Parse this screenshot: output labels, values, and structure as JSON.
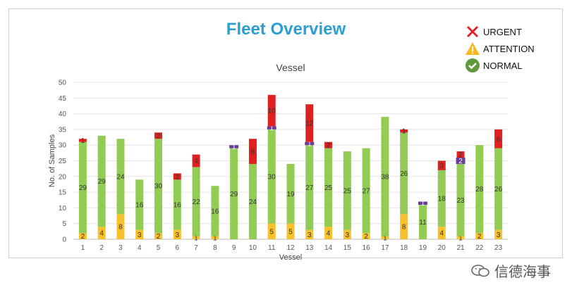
{
  "header": {
    "title": "Fleet Overview"
  },
  "legend": [
    {
      "label": "URGENT",
      "icon": "x-icon",
      "color": "#e02020"
    },
    {
      "label": "ATTENTION",
      "icon": "warning-icon",
      "color": "#f6b922"
    },
    {
      "label": "NORMAL",
      "icon": "check-icon",
      "color": "#5e9a3c"
    }
  ],
  "watermark": {
    "text": "信德海事"
  },
  "chart_data": {
    "type": "bar",
    "stacked": true,
    "title": "Vessel",
    "xlabel": "Vessel",
    "ylabel": "No. of Samples",
    "ylim": [
      0,
      50
    ],
    "yticks": [
      0,
      5,
      10,
      15,
      20,
      25,
      30,
      35,
      40,
      45,
      50
    ],
    "grid": true,
    "categories": [
      "1",
      "2",
      "3",
      "4",
      "5",
      "6",
      "7",
      "8",
      "9",
      "10",
      "11",
      "12",
      "13",
      "14",
      "15",
      "16",
      "17",
      "18",
      "19",
      "20",
      "21",
      "22",
      "23"
    ],
    "colors": {
      "attention": "#f6c12a",
      "normal": "#92cc54",
      "purple": "#6a3d9a",
      "urgent": "#e02020"
    },
    "series": [
      {
        "key": "attention",
        "values": [
          2,
          4,
          8,
          3,
          2,
          3,
          1,
          1,
          0,
          0,
          5,
          5,
          3,
          4,
          3,
          2,
          1,
          8,
          0,
          4,
          1,
          2,
          3
        ]
      },
      {
        "key": "normal",
        "values": [
          29,
          29,
          24,
          16,
          30,
          16,
          22,
          16,
          29,
          24,
          30,
          19,
          27,
          25,
          25,
          27,
          38,
          26,
          11,
          18,
          23,
          28,
          26
        ]
      },
      {
        "key": "purple",
        "values": [
          0,
          0,
          0,
          0,
          0,
          0,
          0,
          0,
          1,
          0,
          1,
          0,
          1,
          0,
          0,
          0,
          0,
          0,
          1,
          0,
          2,
          0,
          0
        ]
      },
      {
        "key": "urgent",
        "values": [
          1,
          0,
          0,
          0,
          2,
          2,
          4,
          0,
          0,
          8,
          10,
          0,
          12,
          2,
          0,
          0,
          0,
          1,
          0,
          3,
          2,
          0,
          6
        ]
      }
    ]
  }
}
